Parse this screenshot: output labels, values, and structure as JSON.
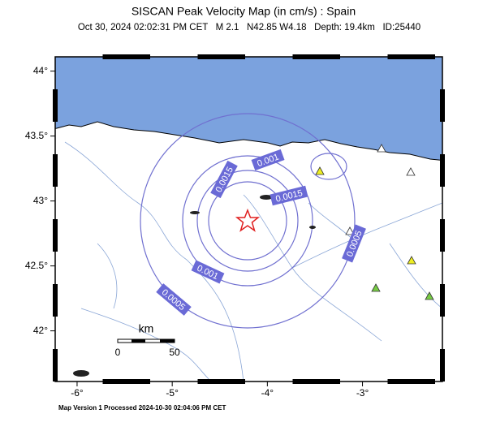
{
  "map": {
    "title": "SISCAN Peak Velocity Map (in cm/s) : Spain",
    "subtitle": "Oct 30, 2024 02:02:31 PM CET   M 2.1   N42.85 W4.18   Depth: 19.4km   ID:25440",
    "footer": "Map Version 1 Processed 2024-10-30 02:04:06 PM CET",
    "xlim": [
      -6.23,
      -2.16
    ],
    "ylim": [
      41.61,
      44.11
    ],
    "xticks": [
      {
        "value": -6,
        "label": "-6°"
      },
      {
        "value": -5,
        "label": "-5°"
      },
      {
        "value": -4,
        "label": "-4°"
      },
      {
        "value": -3,
        "label": "-3°"
      }
    ],
    "yticks": [
      {
        "value": 42,
        "label": "42°"
      },
      {
        "value": 42.5,
        "label": "42.5°"
      },
      {
        "value": 43,
        "label": "43°"
      },
      {
        "value": 43.5,
        "label": "43.5°"
      },
      {
        "value": 44,
        "label": "44°"
      }
    ],
    "contour_labels": [
      "0.001",
      "0.0015",
      "0.0015",
      "0.0005",
      "0.001",
      "0.0005"
    ],
    "scale": {
      "title": "km",
      "ticks": [
        "0",
        "50"
      ]
    }
  }
}
